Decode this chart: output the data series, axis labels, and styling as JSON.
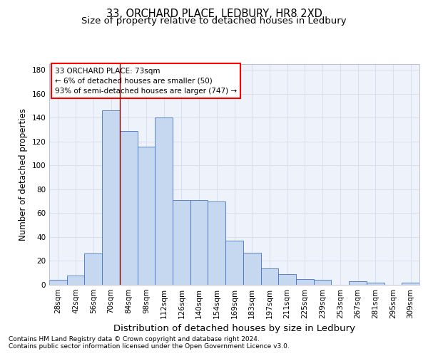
{
  "title1": "33, ORCHARD PLACE, LEDBURY, HR8 2XD",
  "title2": "Size of property relative to detached houses in Ledbury",
  "xlabel": "Distribution of detached houses by size in Ledbury",
  "ylabel": "Number of detached properties",
  "footnote1": "Contains HM Land Registry data © Crown copyright and database right 2024.",
  "footnote2": "Contains public sector information licensed under the Open Government Licence v3.0.",
  "bar_labels": [
    "28sqm",
    "42sqm",
    "56sqm",
    "70sqm",
    "84sqm",
    "98sqm",
    "112sqm",
    "126sqm",
    "140sqm",
    "154sqm",
    "169sqm",
    "183sqm",
    "197sqm",
    "211sqm",
    "225sqm",
    "239sqm",
    "253sqm",
    "267sqm",
    "281sqm",
    "295sqm",
    "309sqm"
  ],
  "bar_values": [
    4,
    8,
    26,
    146,
    129,
    116,
    140,
    71,
    71,
    70,
    37,
    27,
    14,
    9,
    5,
    4,
    0,
    3,
    2,
    0,
    2
  ],
  "bar_color": "#c5d8f0",
  "bar_edge_color": "#4472c4",
  "annotation_text": "33 ORCHARD PLACE: 73sqm\n← 6% of detached houses are smaller (50)\n93% of semi-detached houses are larger (747) →",
  "red_line_x": 3.5,
  "ylim": [
    0,
    185
  ],
  "yticks": [
    0,
    20,
    40,
    60,
    80,
    100,
    120,
    140,
    160,
    180
  ],
  "grid_color": "#d8dff0",
  "background_color": "#eef2fb",
  "title_fontsize": 10.5,
  "subtitle_fontsize": 9.5,
  "axis_label_fontsize": 8.5,
  "tick_fontsize": 7.5,
  "ylabel_fontsize": 8.5,
  "footnote_fontsize": 6.5
}
